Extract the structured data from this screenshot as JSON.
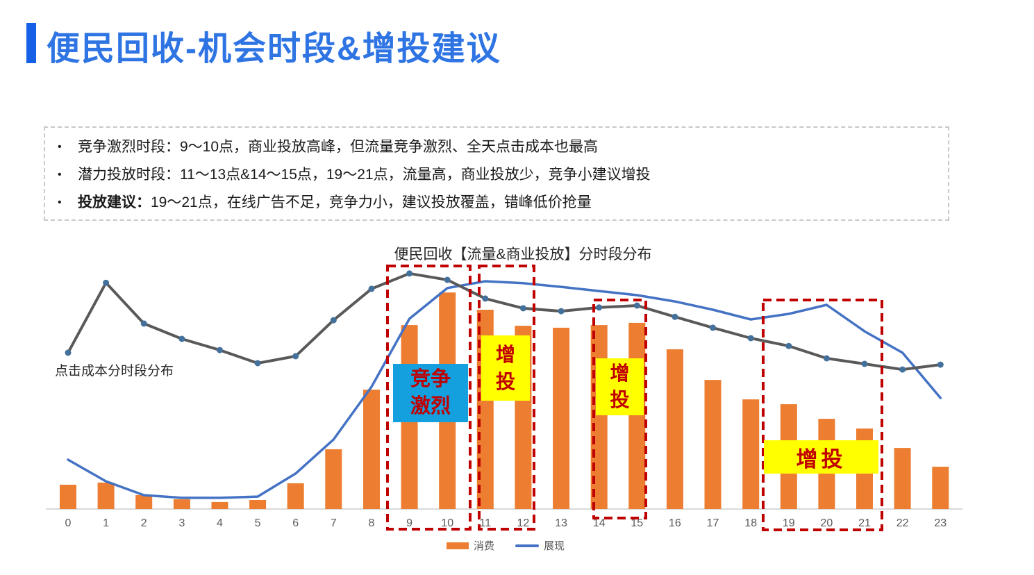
{
  "header": {
    "title": "便民回收-机会时段&增投建议"
  },
  "insights": {
    "bullet_char": "•",
    "bullets": [
      {
        "lead": "",
        "text": "竞争激烈时段：9～10点，商业投放高峰，但流量竞争激烈、全天点击成本也最高"
      },
      {
        "lead": "",
        "text": "潜力投放时段：11～13点&14～15点，19～21点，流量高，商业投放少，竞争小建议增投"
      },
      {
        "lead": "投放建议：",
        "text": "19～21点，在线广告不足，竞争力小，建议投放覆盖，错峰低价抢量"
      }
    ]
  },
  "chart": {
    "highlights": [
      {
        "id": "hours-9-10",
        "hours": "9~10"
      },
      {
        "id": "hours-11-12",
        "hours": "11~12"
      },
      {
        "id": "hours-14-15",
        "hours": "14~15"
      },
      {
        "id": "hours-19-21",
        "hours": "19~21"
      }
    ],
    "annotations": {
      "competition": {
        "text": "竞争\n激烈",
        "bg": "#14A0DE"
      },
      "boost_11_12": {
        "text": "增\n投",
        "bg": "#FFFF00"
      },
      "boost_14_15": {
        "text": "增\n投",
        "bg": "#FFFF00"
      },
      "boost_19_21": {
        "text": "增投",
        "bg": "#FFFF00"
      }
    },
    "colors": {
      "highlight_border": "#C00000",
      "annotation_text": "#C00000",
      "axis": "#D9D9D9",
      "tick": "#595959",
      "accent": "#1660E8",
      "title_blue": "#2E74E3"
    }
  },
  "chart_data": {
    "type": "bar",
    "title": "便民回收【流量&商业投放】分时段分布",
    "xlabel": "",
    "ylabel": "",
    "ylim": [
      0,
      100
    ],
    "value_scale": "relative-percent-of-plot-height (no y-axis shown)",
    "grid": false,
    "legend_position": "bottom",
    "categories": [
      "0",
      "1",
      "2",
      "3",
      "4",
      "5",
      "6",
      "7",
      "8",
      "9",
      "10",
      "11",
      "12",
      "13",
      "14",
      "15",
      "16",
      "17",
      "18",
      "19",
      "20",
      "21",
      "22",
      "23"
    ],
    "series": [
      {
        "name": "消费",
        "type": "bar",
        "color": "#ED7D31",
        "values": [
          10.0,
          10.9,
          5.7,
          4.0,
          2.9,
          3.7,
          10.6,
          24.6,
          49.1,
          75.7,
          89.1,
          82.0,
          75.4,
          74.6,
          75.7,
          76.6,
          65.7,
          53.1,
          45.1,
          43.1,
          37.1,
          33.1,
          25.1,
          17.4
        ]
      },
      {
        "name": "展现",
        "type": "line",
        "color": "#4472C4",
        "values": [
          20.3,
          11.4,
          5.7,
          4.6,
          4.6,
          5.1,
          14.6,
          28.6,
          50.3,
          78.3,
          90.9,
          93.7,
          92.9,
          91.4,
          89.7,
          88.0,
          85.4,
          82.0,
          78.0,
          80.3,
          84.0,
          73.1,
          64.3,
          45.7
        ]
      },
      {
        "name": "点击成本分时段分布",
        "type": "line",
        "color": "#595959",
        "marker_color": "#44719C",
        "values": [
          64.3,
          93.1,
          76.3,
          70.0,
          65.4,
          60.0,
          62.9,
          77.7,
          90.6,
          96.9,
          94.3,
          86.6,
          82.6,
          81.4,
          82.9,
          83.7,
          79.1,
          74.6,
          70.3,
          67.1,
          62.0,
          59.7,
          57.4,
          59.4
        ]
      }
    ]
  }
}
